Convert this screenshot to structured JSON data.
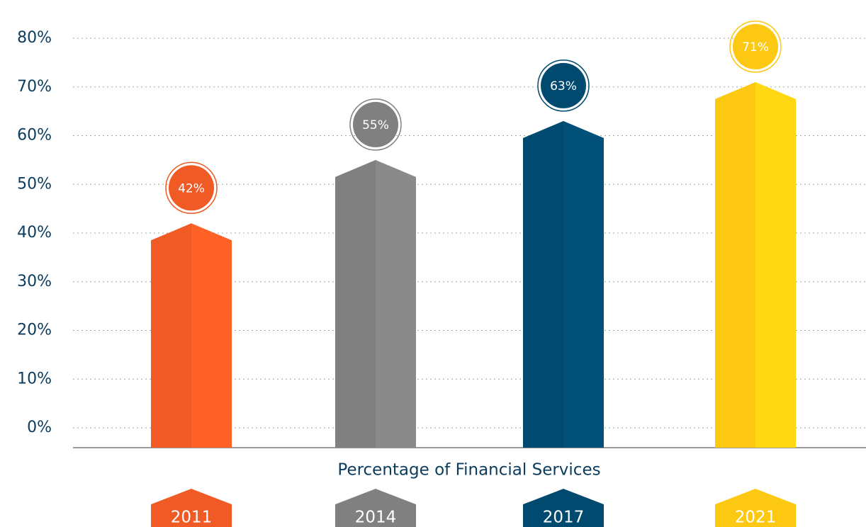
{
  "chart_data": {
    "type": "bar",
    "xlabel": "Percentage of Financial Services",
    "categories": [
      "2011",
      "2014",
      "2017",
      "2021"
    ],
    "values": [
      42,
      55,
      63,
      71
    ],
    "value_labels": [
      "42%",
      "55%",
      "63%",
      "71%"
    ],
    "colors": [
      "#f05a24",
      "#808080",
      "#004a70",
      "#fcc812"
    ],
    "ylim": [
      0,
      80
    ],
    "yticks": [
      {
        "value": 0,
        "label": "0%"
      },
      {
        "value": 10,
        "label": "10%"
      },
      {
        "value": 20,
        "label": "20%"
      },
      {
        "value": 30,
        "label": "30%"
      },
      {
        "value": 40,
        "label": "40%"
      },
      {
        "value": 50,
        "label": "50%"
      },
      {
        "value": 60,
        "label": "60%"
      },
      {
        "value": 70,
        "label": "70%"
      },
      {
        "value": 80,
        "label": "80%"
      }
    ],
    "grid": true
  }
}
